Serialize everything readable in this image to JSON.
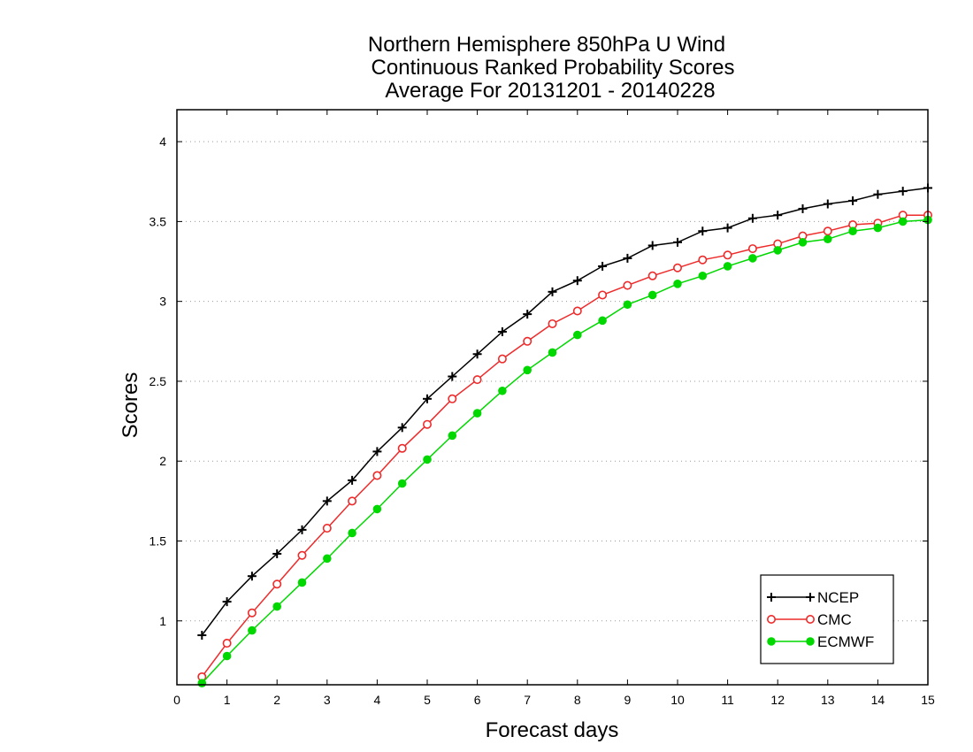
{
  "chart_data": {
    "type": "line",
    "title": [
      "Northern Hemisphere 850hPa U Wind",
      "Continuous Ranked Probability Scores",
      "Average For 20131201 - 20140228"
    ],
    "xlabel": "Forecast days",
    "ylabel": "Scores",
    "xlim": [
      0,
      15
    ],
    "ylim": [
      0.6,
      4.2
    ],
    "xticks": [
      0,
      1,
      2,
      3,
      4,
      5,
      6,
      7,
      8,
      9,
      10,
      11,
      12,
      13,
      14,
      15
    ],
    "yticks": [
      1,
      1.5,
      2,
      2.5,
      3,
      3.5,
      4
    ],
    "ytick_labels": [
      "1",
      "1.5",
      "2",
      "2.5",
      "3",
      "3.5",
      "4"
    ],
    "grid": "horizontal dotted",
    "legend_position": "bottom-right",
    "x": [
      0.5,
      1,
      1.5,
      2,
      2.5,
      3,
      3.5,
      4,
      4.5,
      5,
      5.5,
      6,
      6.5,
      7,
      7.5,
      8,
      8.5,
      9,
      9.5,
      10,
      10.5,
      11,
      11.5,
      12,
      12.5,
      13,
      13.5,
      14,
      14.5,
      15
    ],
    "series": [
      {
        "name": "NCEP",
        "color": "#000000",
        "marker": "plus",
        "values": [
          0.91,
          1.12,
          1.28,
          1.42,
          1.57,
          1.75,
          1.88,
          2.06,
          2.21,
          2.39,
          2.53,
          2.67,
          2.81,
          2.92,
          3.06,
          3.13,
          3.22,
          3.27,
          3.35,
          3.37,
          3.44,
          3.46,
          3.52,
          3.54,
          3.58,
          3.61,
          3.63,
          3.67,
          3.69,
          3.71
        ]
      },
      {
        "name": "CMC",
        "color": "#ee2a2a",
        "marker": "open-circle",
        "values": [
          0.65,
          0.86,
          1.05,
          1.23,
          1.41,
          1.58,
          1.75,
          1.91,
          2.08,
          2.23,
          2.39,
          2.51,
          2.64,
          2.75,
          2.86,
          2.94,
          3.04,
          3.1,
          3.16,
          3.21,
          3.26,
          3.29,
          3.33,
          3.36,
          3.41,
          3.44,
          3.48,
          3.49,
          3.54,
          3.54
        ]
      },
      {
        "name": "ECMWF",
        "color": "#00d800",
        "marker": "filled-circle",
        "values": [
          0.61,
          0.78,
          0.94,
          1.09,
          1.24,
          1.39,
          1.55,
          1.7,
          1.86,
          2.01,
          2.16,
          2.3,
          2.44,
          2.57,
          2.68,
          2.79,
          2.88,
          2.98,
          3.04,
          3.11,
          3.16,
          3.22,
          3.27,
          3.32,
          3.37,
          3.39,
          3.44,
          3.46,
          3.5,
          3.51
        ]
      }
    ]
  }
}
